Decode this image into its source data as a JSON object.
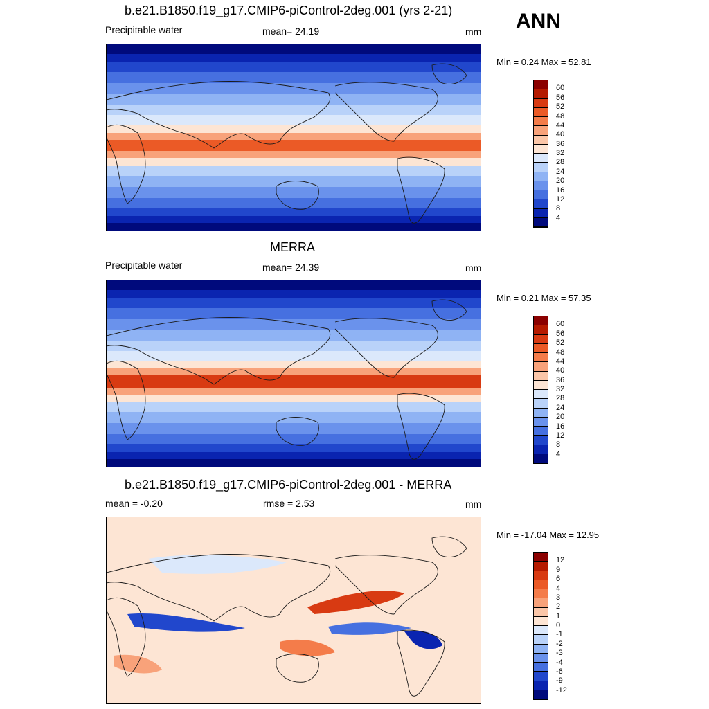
{
  "season": "ANN",
  "panels": [
    {
      "title": "b.e21.B1850.f19_g17.CMIP6-piControl-2deg.001 (yrs 2-21)",
      "left_label": "Precipitable water",
      "center_label": "mean=  24.19",
      "units": "mm",
      "minmax": "Min =   0.24 Max =  52.81",
      "colorbar": {
        "levels": [
          "60",
          "56",
          "52",
          "48",
          "44",
          "40",
          "36",
          "32",
          "28",
          "24",
          "20",
          "16",
          "12",
          "8",
          "4"
        ],
        "colors": [
          "#8b0000",
          "#b51a00",
          "#d83a12",
          "#eb5a26",
          "#f47c4a",
          "#f8a27a",
          "#fbc6a8",
          "#fde5d4",
          "#dbe8fb",
          "#b9d2f9",
          "#8fb3f4",
          "#6a92ec",
          "#4670e0",
          "#2147cc",
          "#0a24b0",
          "#000a7c"
        ]
      },
      "chart_data": {
        "type": "heatmap",
        "title": "b.e21.B1850.f19_g17.CMIP6-piControl-2deg.001 (yrs 2-21)",
        "variable": "Precipitable water",
        "units": "mm",
        "mean": 24.19,
        "min": 0.24,
        "max": 52.81,
        "contour_levels": [
          4,
          8,
          12,
          16,
          20,
          24,
          28,
          32,
          36,
          40,
          44,
          48,
          52,
          56,
          60
        ]
      }
    },
    {
      "title": "MERRA",
      "left_label": "Precipitable water",
      "center_label": "mean=  24.39",
      "units": "mm",
      "minmax": "Min =   0.21 Max =  57.35",
      "colorbar": {
        "levels": [
          "60",
          "56",
          "52",
          "48",
          "44",
          "40",
          "36",
          "32",
          "28",
          "24",
          "20",
          "16",
          "12",
          "8",
          "4"
        ],
        "colors": [
          "#8b0000",
          "#b51a00",
          "#d83a12",
          "#eb5a26",
          "#f47c4a",
          "#f8a27a",
          "#fbc6a8",
          "#fde5d4",
          "#dbe8fb",
          "#b9d2f9",
          "#8fb3f4",
          "#6a92ec",
          "#4670e0",
          "#2147cc",
          "#0a24b0",
          "#000a7c"
        ]
      },
      "chart_data": {
        "type": "heatmap",
        "title": "MERRA",
        "variable": "Precipitable water",
        "units": "mm",
        "mean": 24.39,
        "min": 0.21,
        "max": 57.35,
        "contour_levels": [
          4,
          8,
          12,
          16,
          20,
          24,
          28,
          32,
          36,
          40,
          44,
          48,
          52,
          56,
          60
        ]
      }
    },
    {
      "title": "b.e21.B1850.f19_g17.CMIP6-piControl-2deg.001 - MERRA",
      "left_label": "mean =  -0.20",
      "center_label": "rmse =   2.53",
      "units": "mm",
      "minmax": "Min = -17.04 Max =  12.95",
      "colorbar": {
        "levels": [
          "12",
          "9",
          "6",
          "4",
          "3",
          "2",
          "1",
          "0",
          "-1",
          "-2",
          "-3",
          "-4",
          "-6",
          "-9",
          "-12"
        ],
        "colors": [
          "#8b0000",
          "#b51a00",
          "#d83a12",
          "#eb5a26",
          "#f47c4a",
          "#f8a27a",
          "#fbc6a8",
          "#fde5d4",
          "#dbe8fb",
          "#b9d2f9",
          "#8fb3f4",
          "#6a92ec",
          "#4670e0",
          "#2147cc",
          "#0a24b0",
          "#000a7c"
        ]
      },
      "chart_data": {
        "type": "heatmap",
        "title": "b.e21.B1850.f19_g17.CMIP6-piControl-2deg.001 - MERRA",
        "units": "mm",
        "mean": -0.2,
        "rmse": 2.53,
        "min": -17.04,
        "max": 12.95,
        "contour_levels": [
          -12,
          -9,
          -6,
          -4,
          -3,
          -2,
          -1,
          0,
          1,
          2,
          3,
          4,
          6,
          9,
          12
        ]
      }
    }
  ]
}
